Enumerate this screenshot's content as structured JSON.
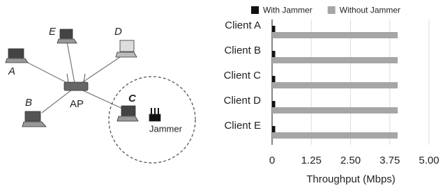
{
  "diagram": {
    "nodes": [
      {
        "label": "A"
      },
      {
        "label": "E"
      },
      {
        "label": "D"
      },
      {
        "label": "B"
      },
      {
        "label": "AP"
      },
      {
        "label": "C"
      },
      {
        "label": "Jammer"
      }
    ]
  },
  "chart_data": {
    "type": "hbar",
    "categories": [
      "Client A",
      "Client B",
      "Client C",
      "Client D",
      "Client E"
    ],
    "series": [
      {
        "name": "With Jammer",
        "color": "#111111",
        "values": [
          0.1,
          0.1,
          0.1,
          0.1,
          0.1
        ]
      },
      {
        "name": "Without Jammer",
        "color": "#a6a6a6",
        "values": [
          4.0,
          4.0,
          4.0,
          4.0,
          4.0
        ]
      }
    ],
    "x_label": "Throughput (Mbps)",
    "xlim": [
      0,
      5
    ],
    "xticks": [
      0,
      1.25,
      {
        "value": 2.5,
        "label": "2.50"
      },
      3.75,
      {
        "value": 5,
        "label": "5.00"
      }
    ],
    "grid": true
  }
}
